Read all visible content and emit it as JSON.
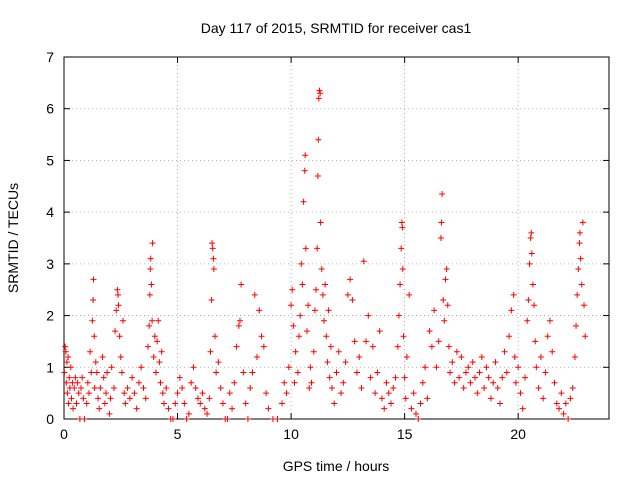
{
  "chart_data": {
    "type": "scatter",
    "title": "Day 117 of 2015, SRMTID for receiver cas1",
    "xlabel": "GPS time / hours",
    "ylabel": "SRMTID / TECUs",
    "xlim": [
      0,
      24
    ],
    "ylim": [
      0,
      7
    ],
    "xticks": [
      0,
      5,
      10,
      15,
      20
    ],
    "yticks": [
      0,
      1,
      2,
      3,
      4,
      5,
      6,
      7
    ],
    "xtick_labels": [
      "0",
      "5",
      "10",
      "15",
      "20"
    ],
    "ytick_labels": [
      "0",
      "1",
      "2",
      "3",
      "4",
      "5",
      "6",
      "7"
    ],
    "grid": true,
    "marker": "+",
    "color": "#ff0000",
    "series": [
      {
        "name": "SRMTID",
        "points": [
          [
            0.02,
            0.9
          ],
          [
            0.05,
            1.4
          ],
          [
            0.08,
            1.3
          ],
          [
            0.1,
            0.7
          ],
          [
            0.13,
            1.1
          ],
          [
            0.15,
            0.5
          ],
          [
            0.18,
            1.2
          ],
          [
            0.2,
            0.3
          ],
          [
            0.23,
            0.8
          ],
          [
            0.26,
            0.6
          ],
          [
            0.3,
            1.0
          ],
          [
            0.33,
            0.4
          ],
          [
            0.37,
            0.7
          ],
          [
            0.4,
            0.2
          ],
          [
            0.45,
            0.6
          ],
          [
            0.5,
            0.8
          ],
          [
            0.55,
            0.3
          ],
          [
            0.6,
            0.7
          ],
          [
            0.65,
            0.5
          ],
          [
            0.7,
            0.0
          ],
          [
            0.75,
            0.6
          ],
          [
            0.8,
            0.8
          ],
          [
            0.85,
            0.4
          ],
          [
            0.9,
            0.0
          ],
          [
            1.0,
            0.3
          ],
          [
            1.05,
            0.7
          ],
          [
            1.1,
            0.5
          ],
          [
            1.15,
            1.3
          ],
          [
            1.2,
            0.9
          ],
          [
            1.25,
            1.9
          ],
          [
            1.28,
            2.3
          ],
          [
            1.3,
            2.7
          ],
          [
            1.33,
            1.6
          ],
          [
            1.35,
            0.6
          ],
          [
            1.4,
            1.1
          ],
          [
            1.45,
            0.9
          ],
          [
            1.5,
            0.4
          ],
          [
            1.55,
            0.2
          ],
          [
            1.6,
            0.6
          ],
          [
            1.7,
            1.2
          ],
          [
            1.75,
            0.8
          ],
          [
            1.8,
            0.3
          ],
          [
            1.85,
            0.5
          ],
          [
            1.9,
            0.9
          ],
          [
            2.0,
            0.1
          ],
          [
            2.05,
            0.4
          ],
          [
            2.1,
            1.0
          ],
          [
            2.2,
            0.6
          ],
          [
            2.25,
            1.7
          ],
          [
            2.3,
            2.1
          ],
          [
            2.35,
            2.5
          ],
          [
            2.38,
            2.4
          ],
          [
            2.4,
            2.2
          ],
          [
            2.45,
            1.6
          ],
          [
            2.5,
            1.2
          ],
          [
            2.55,
            0.9
          ],
          [
            2.6,
            1.9
          ],
          [
            2.65,
            0.5
          ],
          [
            2.7,
            0.3
          ],
          [
            2.8,
            0.6
          ],
          [
            2.9,
            0.4
          ],
          [
            3.0,
            0.8
          ],
          [
            3.1,
            0.5
          ],
          [
            3.2,
            0.2
          ],
          [
            3.3,
            0.7
          ],
          [
            3.4,
            1.0
          ],
          [
            3.5,
            0.6
          ],
          [
            3.6,
            0.4
          ],
          [
            3.7,
            1.4
          ],
          [
            3.75,
            1.8
          ],
          [
            3.78,
            2.4
          ],
          [
            3.8,
            2.9
          ],
          [
            3.82,
            3.1
          ],
          [
            3.85,
            2.6
          ],
          [
            3.88,
            1.9
          ],
          [
            3.9,
            3.4
          ],
          [
            3.95,
            1.2
          ],
          [
            4.0,
            1.6
          ],
          [
            4.05,
            0.9
          ],
          [
            4.1,
            1.5
          ],
          [
            4.15,
            1.9
          ],
          [
            4.2,
            1.1
          ],
          [
            4.25,
            0.7
          ],
          [
            4.3,
            1.3
          ],
          [
            4.35,
            0.5
          ],
          [
            4.4,
            0.3
          ],
          [
            4.5,
            0.6
          ],
          [
            4.6,
            0.2
          ],
          [
            4.7,
            0.0
          ],
          [
            4.8,
            0.0
          ],
          [
            4.9,
            0.3
          ],
          [
            5.0,
            0.5
          ],
          [
            5.1,
            0.8
          ],
          [
            5.2,
            0.6
          ],
          [
            5.3,
            0.3
          ],
          [
            5.4,
            0.0
          ],
          [
            5.5,
            0.1
          ],
          [
            5.6,
            0.7
          ],
          [
            5.7,
            1.0
          ],
          [
            5.8,
            0.6
          ],
          [
            5.9,
            0.4
          ],
          [
            6.0,
            0.3
          ],
          [
            6.1,
            0.5
          ],
          [
            6.2,
            0.2
          ],
          [
            6.3,
            0.1
          ],
          [
            6.4,
            0.4
          ],
          [
            6.45,
            1.3
          ],
          [
            6.5,
            2.3
          ],
          [
            6.52,
            3.4
          ],
          [
            6.55,
            3.3
          ],
          [
            6.58,
            3.1
          ],
          [
            6.6,
            2.9
          ],
          [
            6.65,
            1.6
          ],
          [
            6.7,
            0.9
          ],
          [
            6.8,
            1.1
          ],
          [
            6.9,
            0.6
          ],
          [
            7.0,
            0.3
          ],
          [
            7.1,
            0.0
          ],
          [
            7.2,
            0.0
          ],
          [
            7.3,
            0.5
          ],
          [
            7.4,
            0.2
          ],
          [
            7.5,
            0.7
          ],
          [
            7.6,
            1.4
          ],
          [
            7.7,
            1.8
          ],
          [
            7.75,
            1.9
          ],
          [
            7.8,
            2.6
          ],
          [
            7.9,
            0.9
          ],
          [
            8.0,
            0.3
          ],
          [
            8.1,
            0.0
          ],
          [
            8.2,
            0.6
          ],
          [
            8.3,
            0.9
          ],
          [
            8.4,
            2.4
          ],
          [
            8.5,
            1.2
          ],
          [
            8.6,
            2.1
          ],
          [
            8.7,
            1.6
          ],
          [
            8.8,
            1.4
          ],
          [
            8.9,
            0.5
          ],
          [
            9.0,
            0.2
          ],
          [
            9.2,
            0.0
          ],
          [
            9.4,
            0.0
          ],
          [
            9.6,
            0.3
          ],
          [
            9.7,
            0.7
          ],
          [
            9.8,
            0.5
          ],
          [
            9.9,
            1.0
          ],
          [
            10.0,
            2.2
          ],
          [
            10.05,
            2.5
          ],
          [
            10.1,
            1.8
          ],
          [
            10.15,
            0.7
          ],
          [
            10.2,
            1.3
          ],
          [
            10.3,
            0.9
          ],
          [
            10.35,
            1.6
          ],
          [
            10.4,
            2.0
          ],
          [
            10.45,
            3.0
          ],
          [
            10.5,
            2.6
          ],
          [
            10.55,
            4.2
          ],
          [
            10.6,
            4.8
          ],
          [
            10.62,
            5.1
          ],
          [
            10.65,
            3.3
          ],
          [
            10.7,
            1.7
          ],
          [
            10.75,
            2.2
          ],
          [
            10.8,
            0.6
          ],
          [
            10.85,
            1.0
          ],
          [
            10.9,
            0.7
          ],
          [
            11.0,
            1.3
          ],
          [
            11.05,
            2.1
          ],
          [
            11.1,
            2.5
          ],
          [
            11.15,
            3.3
          ],
          [
            11.18,
            4.7
          ],
          [
            11.2,
            5.4
          ],
          [
            11.22,
            6.2
          ],
          [
            11.25,
            6.35
          ],
          [
            11.28,
            6.3
          ],
          [
            11.3,
            3.8
          ],
          [
            11.35,
            2.9
          ],
          [
            11.4,
            2.4
          ],
          [
            11.45,
            1.9
          ],
          [
            11.5,
            2.6
          ],
          [
            11.55,
            1.6
          ],
          [
            11.6,
            1.1
          ],
          [
            11.65,
            2.1
          ],
          [
            11.7,
            0.8
          ],
          [
            11.75,
            1.4
          ],
          [
            11.8,
            0.6
          ],
          [
            11.9,
            0.3
          ],
          [
            12.0,
            0.9
          ],
          [
            12.1,
            1.3
          ],
          [
            12.2,
            0.5
          ],
          [
            12.3,
            0.7
          ],
          [
            12.4,
            1.1
          ],
          [
            12.5,
            2.4
          ],
          [
            12.6,
            2.7
          ],
          [
            12.7,
            2.3
          ],
          [
            12.8,
            1.5
          ],
          [
            12.9,
            0.9
          ],
          [
            13.0,
            1.2
          ],
          [
            13.1,
            0.6
          ],
          [
            13.2,
            3.05
          ],
          [
            13.3,
            1.5
          ],
          [
            13.4,
            2.0
          ],
          [
            13.5,
            0.8
          ],
          [
            13.6,
            1.4
          ],
          [
            13.7,
            0.5
          ],
          [
            13.8,
            0.9
          ],
          [
            13.9,
            1.7
          ],
          [
            14.0,
            0.4
          ],
          [
            14.1,
            0.2
          ],
          [
            14.2,
            0.7
          ],
          [
            14.3,
            0.5
          ],
          [
            14.4,
            0.3
          ],
          [
            14.5,
            0.6
          ],
          [
            14.6,
            0.8
          ],
          [
            14.7,
            1.4
          ],
          [
            14.75,
            2.0
          ],
          [
            14.8,
            2.6
          ],
          [
            14.85,
            3.3
          ],
          [
            14.88,
            3.8
          ],
          [
            14.9,
            3.7
          ],
          [
            14.92,
            2.9
          ],
          [
            14.95,
            1.6
          ],
          [
            15.0,
            0.8
          ],
          [
            15.05,
            0.4
          ],
          [
            15.1,
            1.2
          ],
          [
            15.2,
            2.4
          ],
          [
            15.3,
            0.2
          ],
          [
            15.4,
            0.5
          ],
          [
            15.5,
            0.1
          ],
          [
            15.6,
            0.0
          ],
          [
            15.7,
            0.3
          ],
          [
            15.8,
            0.7
          ],
          [
            15.9,
            1.0
          ],
          [
            16.0,
            0.4
          ],
          [
            16.1,
            1.7
          ],
          [
            16.2,
            1.4
          ],
          [
            16.3,
            2.1
          ],
          [
            16.4,
            1.0
          ],
          [
            16.5,
            1.5
          ],
          [
            16.6,
            3.5
          ],
          [
            16.62,
            3.8
          ],
          [
            16.65,
            4.35
          ],
          [
            16.7,
            2.3
          ],
          [
            16.75,
            1.9
          ],
          [
            16.8,
            2.7
          ],
          [
            16.85,
            2.9
          ],
          [
            16.9,
            2.2
          ],
          [
            16.95,
            1.4
          ],
          [
            17.0,
            0.9
          ],
          [
            17.1,
            1.1
          ],
          [
            17.2,
            0.7
          ],
          [
            17.3,
            1.3
          ],
          [
            17.4,
            0.8
          ],
          [
            17.5,
            1.2
          ],
          [
            17.6,
            0.6
          ],
          [
            17.7,
            0.9
          ],
          [
            17.8,
            1.0
          ],
          [
            17.9,
            0.7
          ],
          [
            18.0,
            1.1
          ],
          [
            18.1,
            0.8
          ],
          [
            18.2,
            0.5
          ],
          [
            18.3,
            0.9
          ],
          [
            18.4,
            1.2
          ],
          [
            18.5,
            0.6
          ],
          [
            18.6,
            1.0
          ],
          [
            18.7,
            0.8
          ],
          [
            18.8,
            0.4
          ],
          [
            18.9,
            0.7
          ],
          [
            19.0,
            1.1
          ],
          [
            19.1,
            0.6
          ],
          [
            19.2,
            0.3
          ],
          [
            19.3,
            0.8
          ],
          [
            19.4,
            1.3
          ],
          [
            19.5,
            0.9
          ],
          [
            19.6,
            1.6
          ],
          [
            19.7,
            2.1
          ],
          [
            19.8,
            2.4
          ],
          [
            19.85,
            1.2
          ],
          [
            19.9,
            0.7
          ],
          [
            20.0,
            1.0
          ],
          [
            20.1,
            0.5
          ],
          [
            20.2,
            0.2
          ],
          [
            20.3,
            0.8
          ],
          [
            20.4,
            1.9
          ],
          [
            20.45,
            2.3
          ],
          [
            20.5,
            3.0
          ],
          [
            20.55,
            3.5
          ],
          [
            20.58,
            3.6
          ],
          [
            20.6,
            3.2
          ],
          [
            20.65,
            2.6
          ],
          [
            20.7,
            2.2
          ],
          [
            20.75,
            1.5
          ],
          [
            20.8,
            1.0
          ],
          [
            20.9,
            0.6
          ],
          [
            21.0,
            1.2
          ],
          [
            21.1,
            0.4
          ],
          [
            21.2,
            0.9
          ],
          [
            21.3,
            1.6
          ],
          [
            21.4,
            1.9
          ],
          [
            21.5,
            1.3
          ],
          [
            21.6,
            0.7
          ],
          [
            21.7,
            0.3
          ],
          [
            21.8,
            0.2
          ],
          [
            21.9,
            0.5
          ],
          [
            22.0,
            0.1
          ],
          [
            22.1,
            0.3
          ],
          [
            22.2,
            0.0
          ],
          [
            22.3,
            0.4
          ],
          [
            22.4,
            0.6
          ],
          [
            22.5,
            1.2
          ],
          [
            22.55,
            1.8
          ],
          [
            22.6,
            2.4
          ],
          [
            22.65,
            2.9
          ],
          [
            22.7,
            3.4
          ],
          [
            22.72,
            3.6
          ],
          [
            22.75,
            3.1
          ],
          [
            22.8,
            2.6
          ],
          [
            22.85,
            3.8
          ],
          [
            22.9,
            2.2
          ],
          [
            22.95,
            1.6
          ]
        ]
      }
    ]
  }
}
